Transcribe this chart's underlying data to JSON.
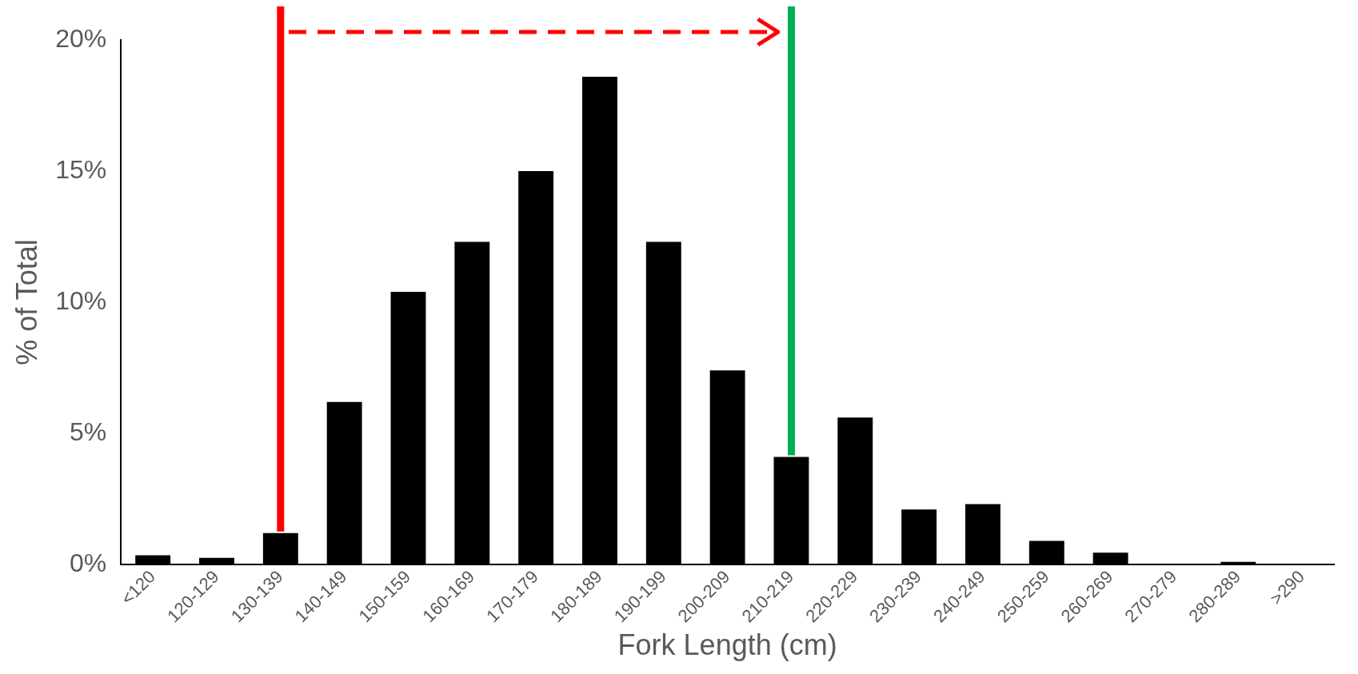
{
  "chart_data": {
    "type": "bar",
    "xlabel": "Fork Length (cm)",
    "ylabel": "% of Total",
    "categories": [
      "<120",
      "120-129",
      "130-139",
      "140-149",
      "150-159",
      "160-169",
      "170-179",
      "180-189",
      "190-199",
      "200-209",
      "210-219",
      "220-229",
      "230-239",
      "240-249",
      "250-259",
      "260-269",
      "270-279",
      "280-289",
      ">290"
    ],
    "values": [
      0.35,
      0.25,
      1.2,
      6.2,
      10.4,
      12.3,
      15.0,
      18.6,
      12.3,
      7.4,
      4.1,
      5.6,
      2.1,
      2.3,
      0.9,
      0.45,
      0,
      0.1,
      0
    ],
    "color": "#000000",
    "ylim": [
      0,
      20
    ],
    "yticks": [
      {
        "value": 0,
        "label": "0%"
      },
      {
        "value": 5,
        "label": "5%"
      },
      {
        "value": 10,
        "label": "10%"
      },
      {
        "value": 15,
        "label": "15%"
      },
      {
        "value": 20,
        "label": "20%"
      }
    ],
    "grid": false,
    "legend": false,
    "ref_lines": [
      {
        "axis": "x",
        "value": "130-139",
        "color": "#ff0000"
      },
      {
        "axis": "x",
        "value": "210-219",
        "color": "#00b050"
      }
    ]
  }
}
